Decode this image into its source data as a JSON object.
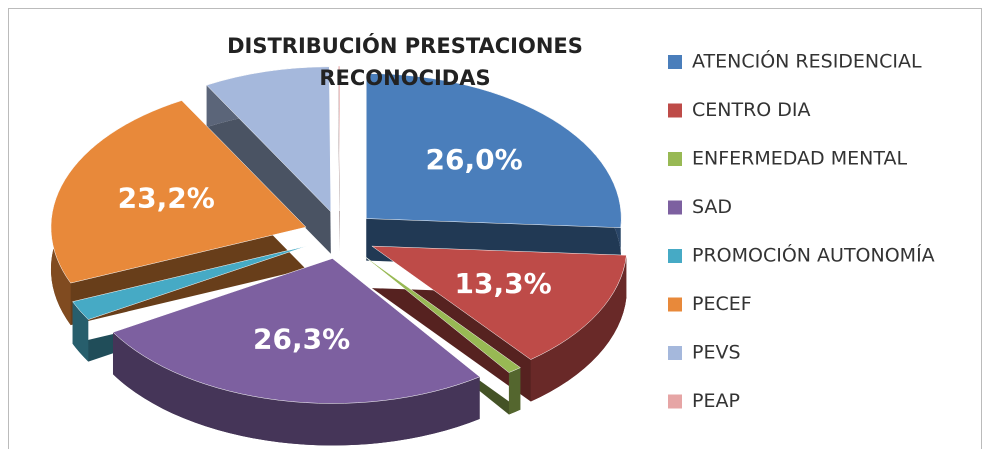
{
  "chart_data": {
    "type": "pie",
    "title": "DISTRIBUCIÓN PRESTACIONES RECONOCIDAS",
    "categories": [
      "ATENCIÓN RESIDENCIAL",
      "CENTRO DIA",
      "ENFERMEDAD MENTAL",
      "SAD",
      "PROMOCIÓN AUTONOMÍA",
      "PECEF",
      "PEVS",
      "PEAP"
    ],
    "values": [
      26.0,
      13.3,
      0.9,
      26.3,
      2.2,
      23.2,
      8.0,
      0.1
    ],
    "value_labels": [
      "26,0%",
      "13,3%",
      null,
      "26,3%",
      null,
      "23,2%",
      null,
      null
    ],
    "colors": [
      "#4a7ebb",
      "#be4b48",
      "#98b954",
      "#7d60a0",
      "#46aac5",
      "#e8893a",
      "#a5b8dc",
      "#e6a5a5"
    ],
    "legend": "right"
  }
}
